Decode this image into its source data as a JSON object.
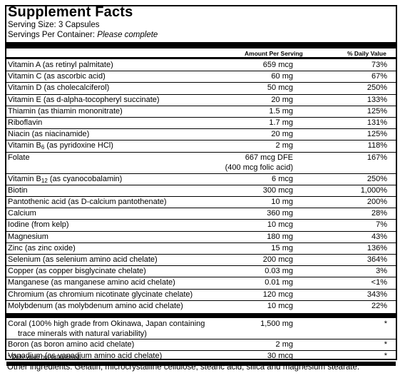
{
  "title": "Supplement Facts",
  "serving_size": "Serving Size: 3 Capsules",
  "servings_label": "Servings Per Container:",
  "servings_value": "Please complete",
  "headers": {
    "amount": "Amount Per Serving",
    "dv": "% Daily Value"
  },
  "nutrients": [
    {
      "name": "Vitamin A (as retinyl palmitate)",
      "amount": "659 mcg",
      "dv": "73%"
    },
    {
      "name": "Vitamin C (as ascorbic acid)",
      "amount": "60 mg",
      "dv": "67%"
    },
    {
      "name": "Vitamin D (as cholecalciferol)",
      "amount": "50 mcg",
      "dv": "250%"
    },
    {
      "name": "Vitamin E (as d-alpha-tocopheryl succinate)",
      "amount": "20 mg",
      "dv": "133%"
    },
    {
      "name": "Thiamin (as thiamin mononitrate)",
      "amount": "1.5 mg",
      "dv": "125%"
    },
    {
      "name": "Riboflavin",
      "amount": "1.7 mg",
      "dv": "131%"
    },
    {
      "name": "Niacin (as niacinamide)",
      "amount": "20 mg",
      "dv": "125%"
    },
    {
      "name": "Vitamin B6 (as pyridoxine HCl)",
      "amount": "2 mg",
      "dv": "118%"
    },
    {
      "name": "Folate",
      "amount": "667 mcg DFE",
      "amount2": "(400 mcg folic acid)",
      "dv": "167%"
    },
    {
      "name": "Vitamin B12 (as cyanocobalamin)",
      "amount": "6 mcg",
      "dv": "250%"
    },
    {
      "name": "Biotin",
      "amount": "300 mcg",
      "dv": "1,000%"
    },
    {
      "name": "Pantothenic acid (as D-calcium pantothenate)",
      "amount": "10 mg",
      "dv": "200%"
    },
    {
      "name": "Calcium",
      "amount": "360 mg",
      "dv": "28%"
    },
    {
      "name": "Iodine (from kelp)",
      "amount": "10 mcg",
      "dv": "7%"
    },
    {
      "name": "Magnesium",
      "amount": "180 mg",
      "dv": "43%"
    },
    {
      "name": "Zinc (as zinc oxide)",
      "amount": "15 mg",
      "dv": "136%"
    },
    {
      "name": "Selenium (as selenium amino acid chelate)",
      "amount": "200 mcg",
      "dv": "364%"
    },
    {
      "name": "Copper (as copper bisglycinate chelate)",
      "amount": "0.03 mg",
      "dv": "3%"
    },
    {
      "name": "Manganese (as manganese amino acid chelate)",
      "amount": "0.01 mg",
      "dv": "<1%"
    },
    {
      "name": "Chromium (as chromium nicotinate glycinate chelate)",
      "amount": "120 mcg",
      "dv": "343%"
    },
    {
      "name": "Molybdenum (as molybdenum amino acid chelate)",
      "amount": "10 mcg",
      "dv": "22%"
    }
  ],
  "others": [
    {
      "name": "Coral (100% high grade from Okinawa, Japan containing",
      "name2": "trace minerals with natural variability)",
      "amount": "1,500 mg",
      "dv": "*"
    },
    {
      "name": "Boron (as boron amino acid chelate)",
      "amount": "2 mg",
      "dv": "*"
    },
    {
      "name": "Vanadium (as vanadium amino acid chelate)",
      "amount": "30 mcg",
      "dv": "*"
    }
  ],
  "footnote": "* Daily value not established.",
  "other_ingredients": "Other ingredients: Gelatin, microcrystalline cellulose, stearic acid, silica and magnesium stearate."
}
